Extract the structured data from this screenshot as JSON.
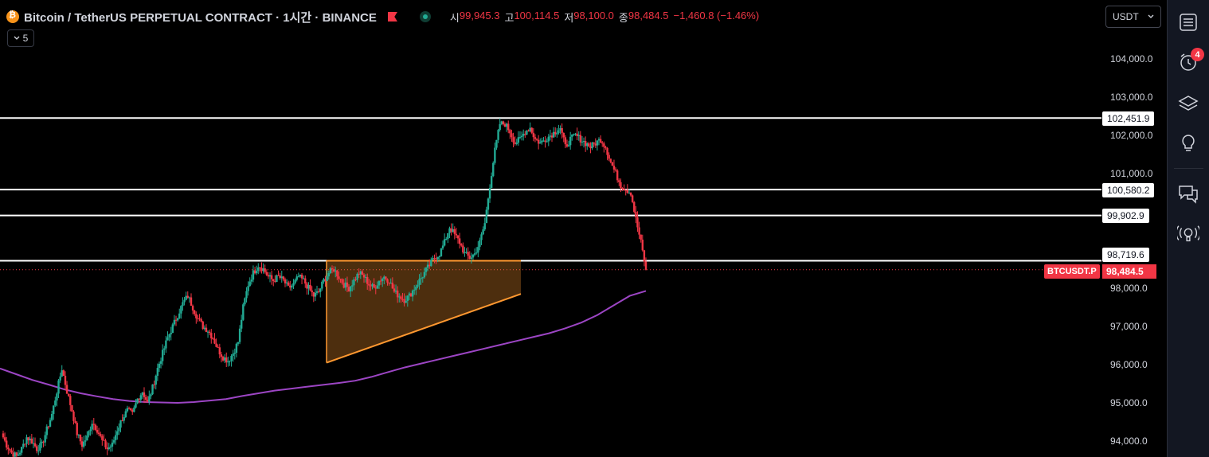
{
  "header": {
    "title": "Bitcoin / TetherUS PERPETUAL CONTRACT · 1시간 · BINANCE",
    "ohlc": [
      {
        "label": "시",
        "value": "99,945.3"
      },
      {
        "label": "고",
        "value": "100,114.5"
      },
      {
        "label": "저",
        "value": "98,100.0"
      },
      {
        "label": "종",
        "value": "98,484.5"
      }
    ],
    "change": "−1,460.8 (−1.46%)",
    "indicators_collapsed": "5",
    "currency": "USDT"
  },
  "icons": [
    "bitcoin-coin-icon",
    "flag-icon",
    "market-status-icon",
    "chevron-down-icon",
    "menu-list-icon",
    "alarm-clock-icon",
    "layers-icon",
    "lightbulb-icon",
    "chat-icon",
    "broadcast-icon"
  ],
  "sidebar": {
    "alert_count": "4"
  },
  "colors": {
    "up": "#22ab94",
    "down": "#f23645",
    "ma": "#9c45c4",
    "triangle": "#ff9830",
    "hline": "#ffffff",
    "background": "#000000"
  },
  "price_axis": {
    "ticks": [
      "104,000.0",
      "103,000.0",
      "102,000.0",
      "101,000.0",
      "98,000.0",
      "97,000.0",
      "96,000.0",
      "95,000.0",
      "94,000.0"
    ]
  },
  "horizontal_lines": [
    {
      "price": 102451.9,
      "label": "102,451.9"
    },
    {
      "price": 100580.2,
      "label": "100,580.2"
    },
    {
      "price": 99902.9,
      "label": "99,902.9"
    },
    {
      "price": 98719.6,
      "label": "98,719.6"
    }
  ],
  "current_price": {
    "symbol": "BTCUSDT.P",
    "value": 98484.5,
    "label": "98,484.5"
  },
  "chart_data": {
    "type": "candlestick",
    "symbol": "BTCUSDT.P",
    "interval": "1시간",
    "exchange": "BINANCE",
    "ylim": [
      93600,
      105200
    ],
    "triangle_pattern": {
      "top": 98719.6,
      "bottom_start": 96050,
      "bottom_end": 97850
    },
    "close_path": [
      94200,
      93900,
      93700,
      93600,
      93800,
      94100,
      94000,
      93800,
      93900,
      94300,
      94700,
      95300,
      95900,
      95300,
      94800,
      94200,
      93900,
      94100,
      94500,
      94300,
      94000,
      93800,
      93900,
      94300,
      94600,
      94800,
      94700,
      95100,
      95300,
      95000,
      95400,
      95900,
      96300,
      96700,
      97000,
      97300,
      97600,
      97800,
      97500,
      97200,
      97000,
      96900,
      96700,
      96400,
      96200,
      96100,
      96300,
      96600,
      97500,
      98100,
      98400,
      98600,
      98500,
      98300,
      98200,
      98300,
      98200,
      98000,
      98100,
      98300,
      98200,
      98000,
      97800,
      97900,
      98200,
      98400,
      98500,
      98300,
      98100,
      98000,
      98200,
      98400,
      98300,
      98100,
      98000,
      98200,
      98300,
      98200,
      97900,
      97800,
      97700,
      97800,
      98000,
      98200,
      98400,
      98600,
      98800,
      98900,
      99200,
      99600,
      99400,
      99200,
      98900,
      98800,
      98900,
      99200,
      99700,
      100700,
      101600,
      102300,
      102300,
      102100,
      101800,
      101900,
      102100,
      102200,
      101900,
      101800,
      101900,
      102000,
      102100,
      102200,
      101700,
      101900,
      102000,
      101900,
      101800,
      101700,
      101800,
      101900,
      101700,
      101300,
      101000,
      100700,
      100600,
      100500,
      99800,
      99200,
      98484.5
    ],
    "ma_path": [
      95900,
      95750,
      95600,
      95480,
      95350,
      95250,
      95170,
      95100,
      95050,
      95020,
      95010,
      95000,
      95020,
      95060,
      95100,
      95180,
      95250,
      95320,
      95370,
      95420,
      95470,
      95520,
      95580,
      95680,
      95800,
      95920,
      96020,
      96120,
      96220,
      96320,
      96420,
      96520,
      96620,
      96720,
      96820,
      96950,
      97100,
      97300,
      97550,
      97800,
      97930
    ]
  }
}
